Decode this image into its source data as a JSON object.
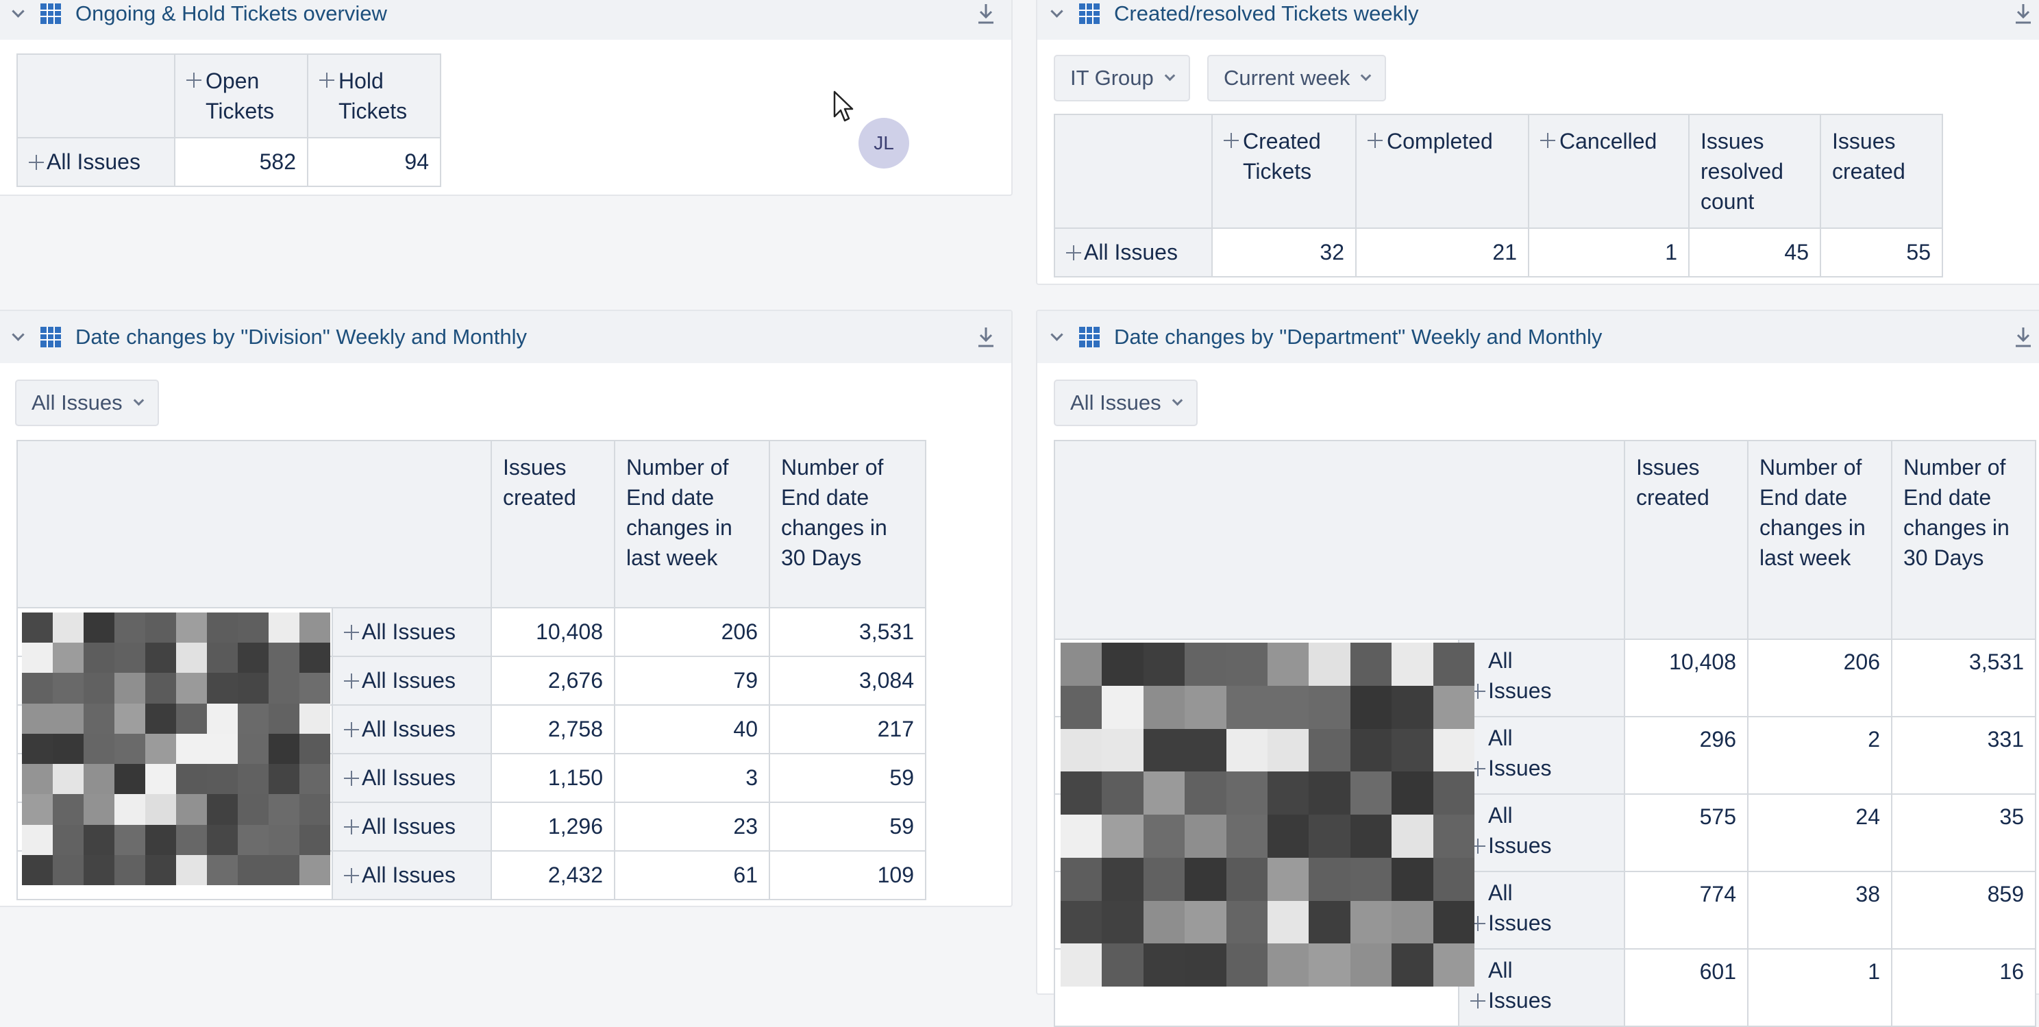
{
  "panels": {
    "ongoing": {
      "title": "Ongoing & Hold Tickets overview",
      "col_headers": [
        "Open Tickets",
        "Hold Tickets"
      ],
      "row_label": "All Issues",
      "values": [
        "582",
        "94"
      ]
    },
    "created": {
      "title": "Created/resolved Tickets weekly",
      "filter1": "IT Group",
      "filter2": "Current week",
      "col_headers": [
        "Created Tickets",
        "Completed",
        "Cancelled",
        "Issues resolved count",
        "Issues created"
      ],
      "row_label": "All Issues",
      "values": [
        "32",
        "21",
        "1",
        "45",
        "55"
      ]
    },
    "division": {
      "title": "Date changes by \"Division\" Weekly and Monthly",
      "filter": "All Issues",
      "col_headers": [
        "Issues created",
        "Number of End date changes in last week",
        "Number of End date changes in 30 Days"
      ],
      "rows": [
        {
          "label": "All Issues",
          "values": [
            "10,408",
            "206",
            "3,531"
          ]
        },
        {
          "label": "All Issues",
          "values": [
            "2,676",
            "79",
            "3,084"
          ]
        },
        {
          "label": "All Issues",
          "values": [
            "2,758",
            "40",
            "217"
          ]
        },
        {
          "label": "All Issues",
          "values": [
            "1,150",
            "3",
            "59"
          ]
        },
        {
          "label": "All Issues",
          "values": [
            "1,296",
            "23",
            "59"
          ]
        },
        {
          "label": "All Issues",
          "values": [
            "2,432",
            "61",
            "109"
          ]
        }
      ]
    },
    "department": {
      "title": "Date changes by \"Department\" Weekly and Monthly",
      "filter": "All Issues",
      "col_headers": [
        "Issues created",
        "Number of End date changes in last week",
        "Number of End date changes in 30 Days"
      ],
      "rows": [
        {
          "label": "All Issues",
          "values": [
            "10,408",
            "206",
            "3,531"
          ]
        },
        {
          "label": "All Issues",
          "values": [
            "296",
            "2",
            "331"
          ]
        },
        {
          "label": "All Issues",
          "values": [
            "575",
            "24",
            "35"
          ]
        },
        {
          "label": "All Issues",
          "values": [
            "774",
            "38",
            "859"
          ]
        },
        {
          "label": "All Issues",
          "values": [
            "601",
            "1",
            "16"
          ]
        }
      ]
    }
  },
  "avatar_initials": "JL",
  "icons": {
    "collapse": "chevron-down-icon",
    "table": "table-grid-icon",
    "download": "download-icon",
    "expand": "plus-icon",
    "cursor": "mouse-pointer-icon"
  },
  "colors": {
    "title": "#1d4f7c",
    "header_bg": "#f0f2f5",
    "table_icon": "#2f6fbf",
    "avatar_bg": "#cfd0e8"
  }
}
